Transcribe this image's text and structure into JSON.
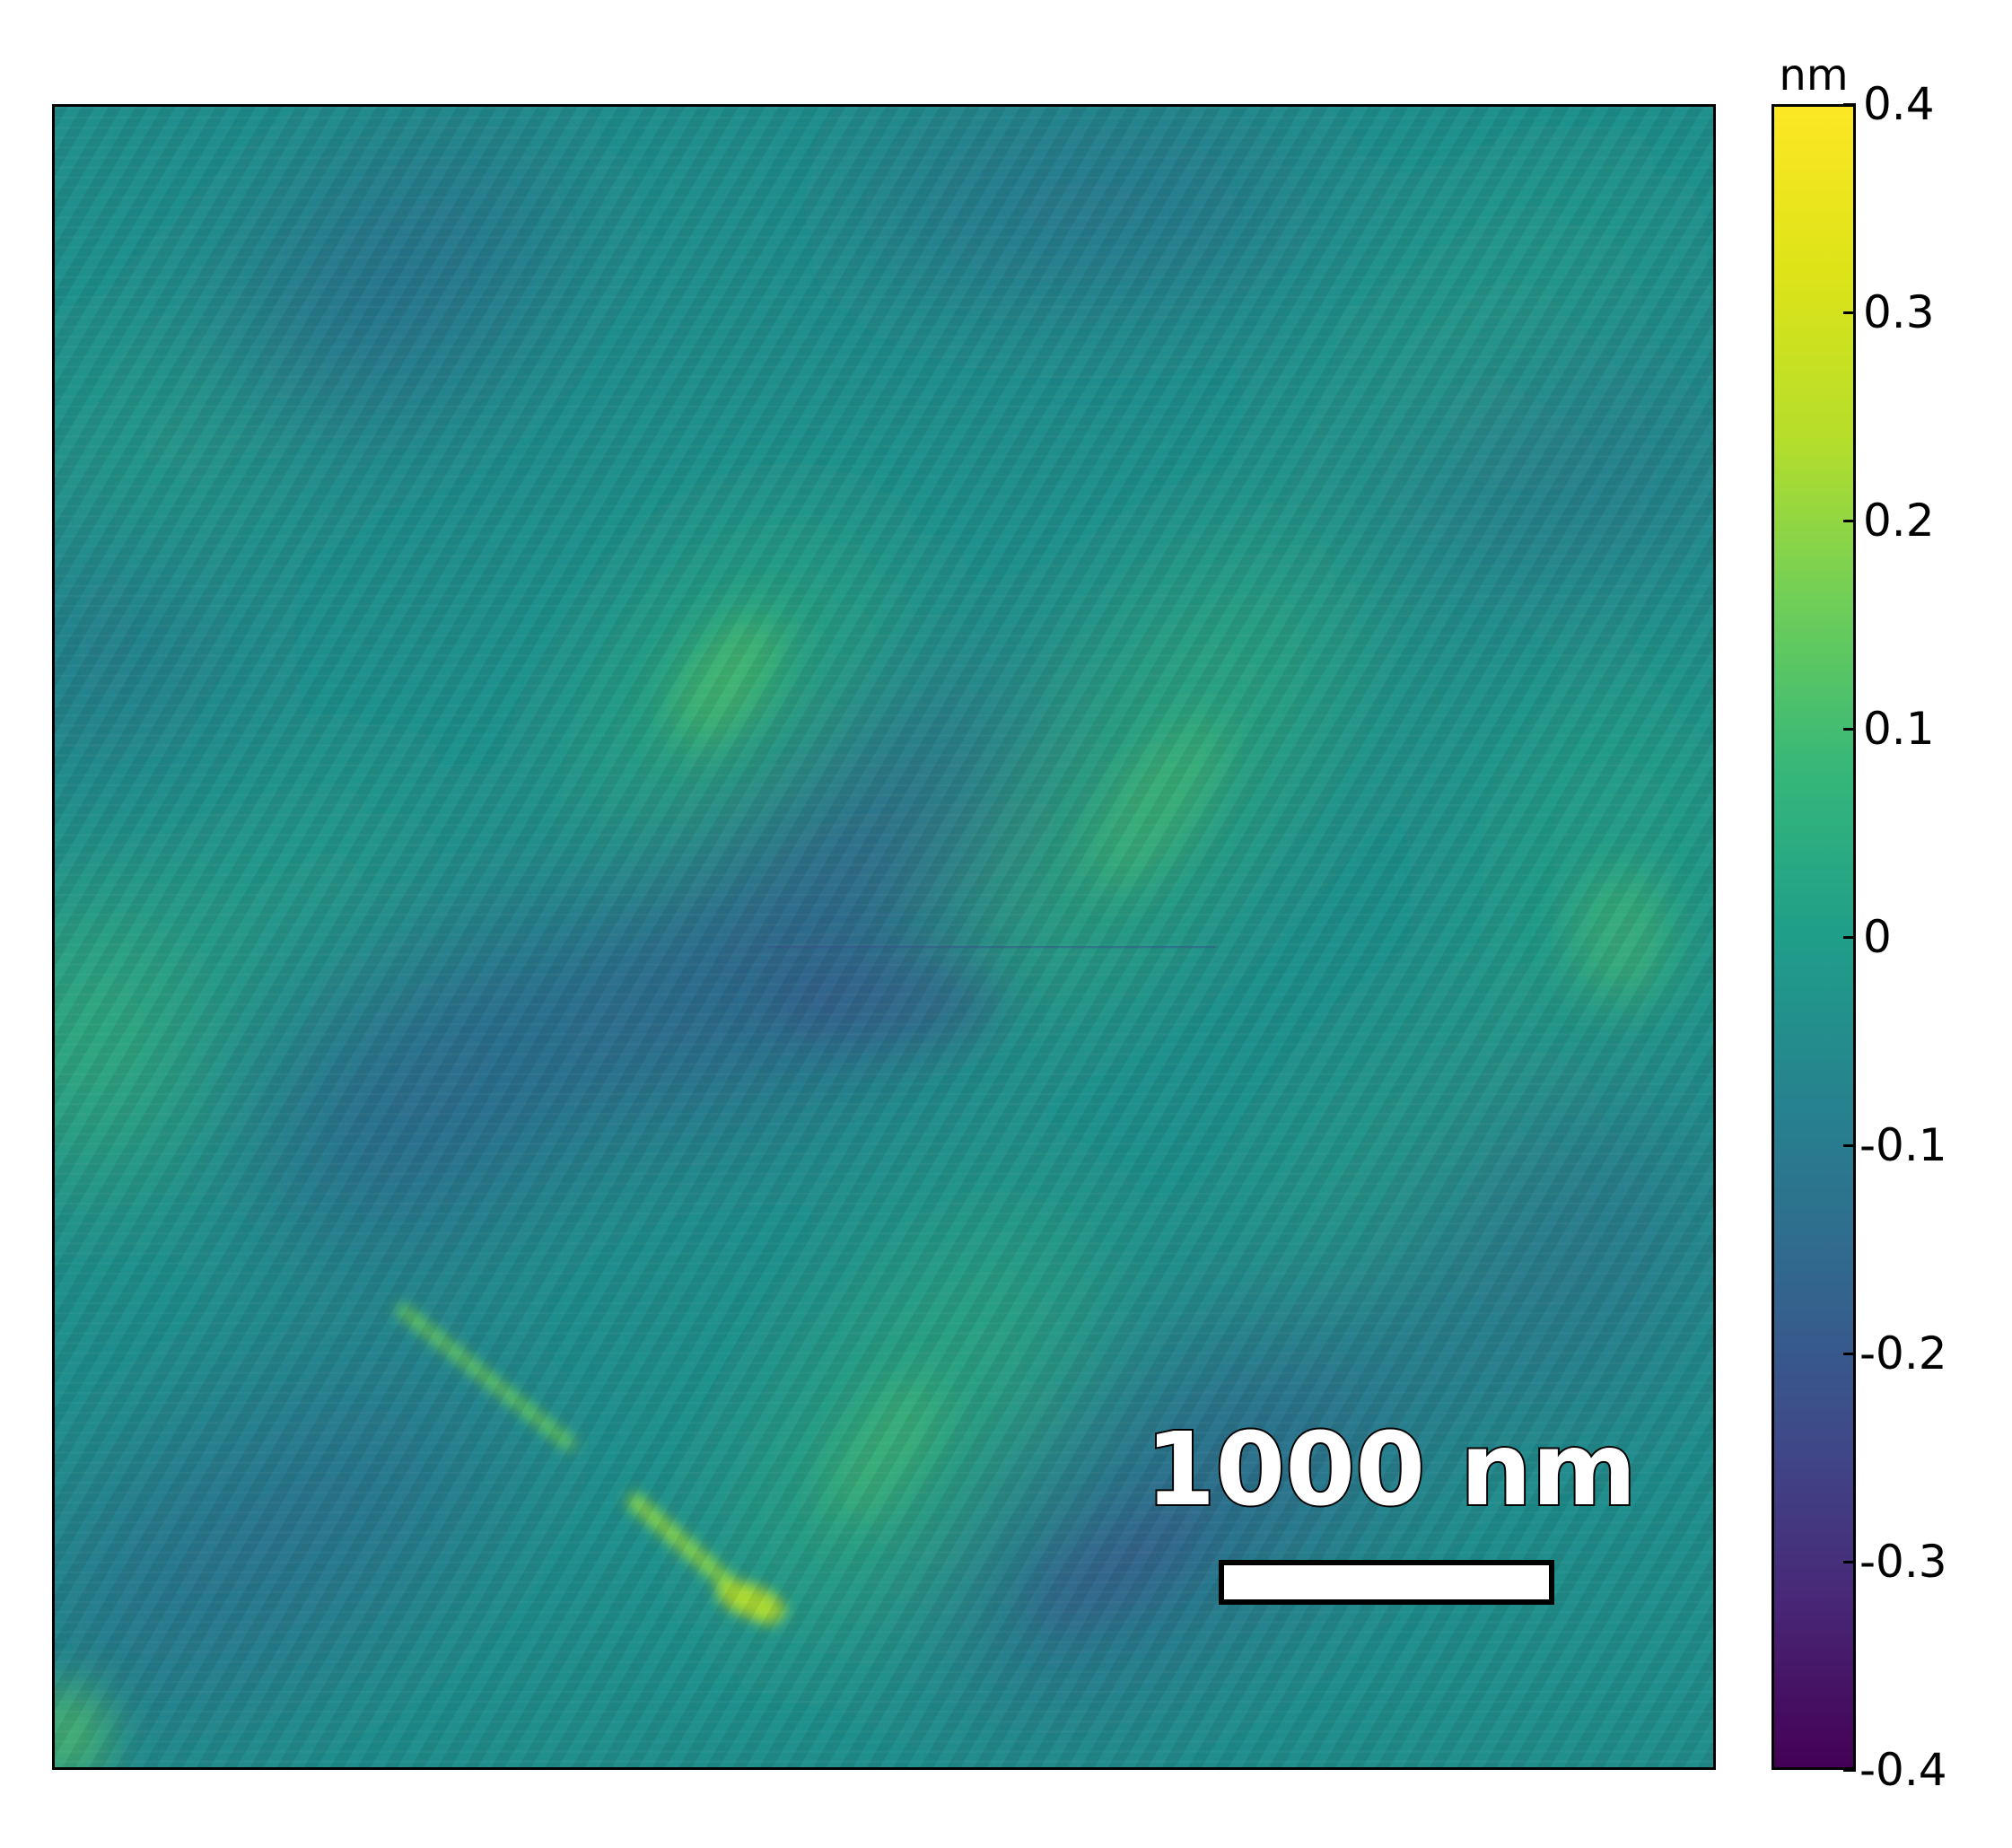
{
  "image": {
    "description_colormap": "viridis",
    "scale_bar": {
      "label": "1000 nm"
    }
  },
  "colorbar": {
    "unit": "nm",
    "ticks": [
      {
        "value": 0.4,
        "label": "0.4"
      },
      {
        "value": 0.3,
        "label": "0.3"
      },
      {
        "value": 0.2,
        "label": "0.2"
      },
      {
        "value": 0.1,
        "label": "0.1"
      },
      {
        "value": 0,
        "label": "0"
      },
      {
        "value": -0.1,
        "label": "-0.1"
      },
      {
        "value": -0.2,
        "label": "-0.2"
      },
      {
        "value": -0.3,
        "label": "-0.3"
      },
      {
        "value": -0.4,
        "label": "-0.4"
      }
    ],
    "min": -0.4,
    "max": 0.4
  }
}
